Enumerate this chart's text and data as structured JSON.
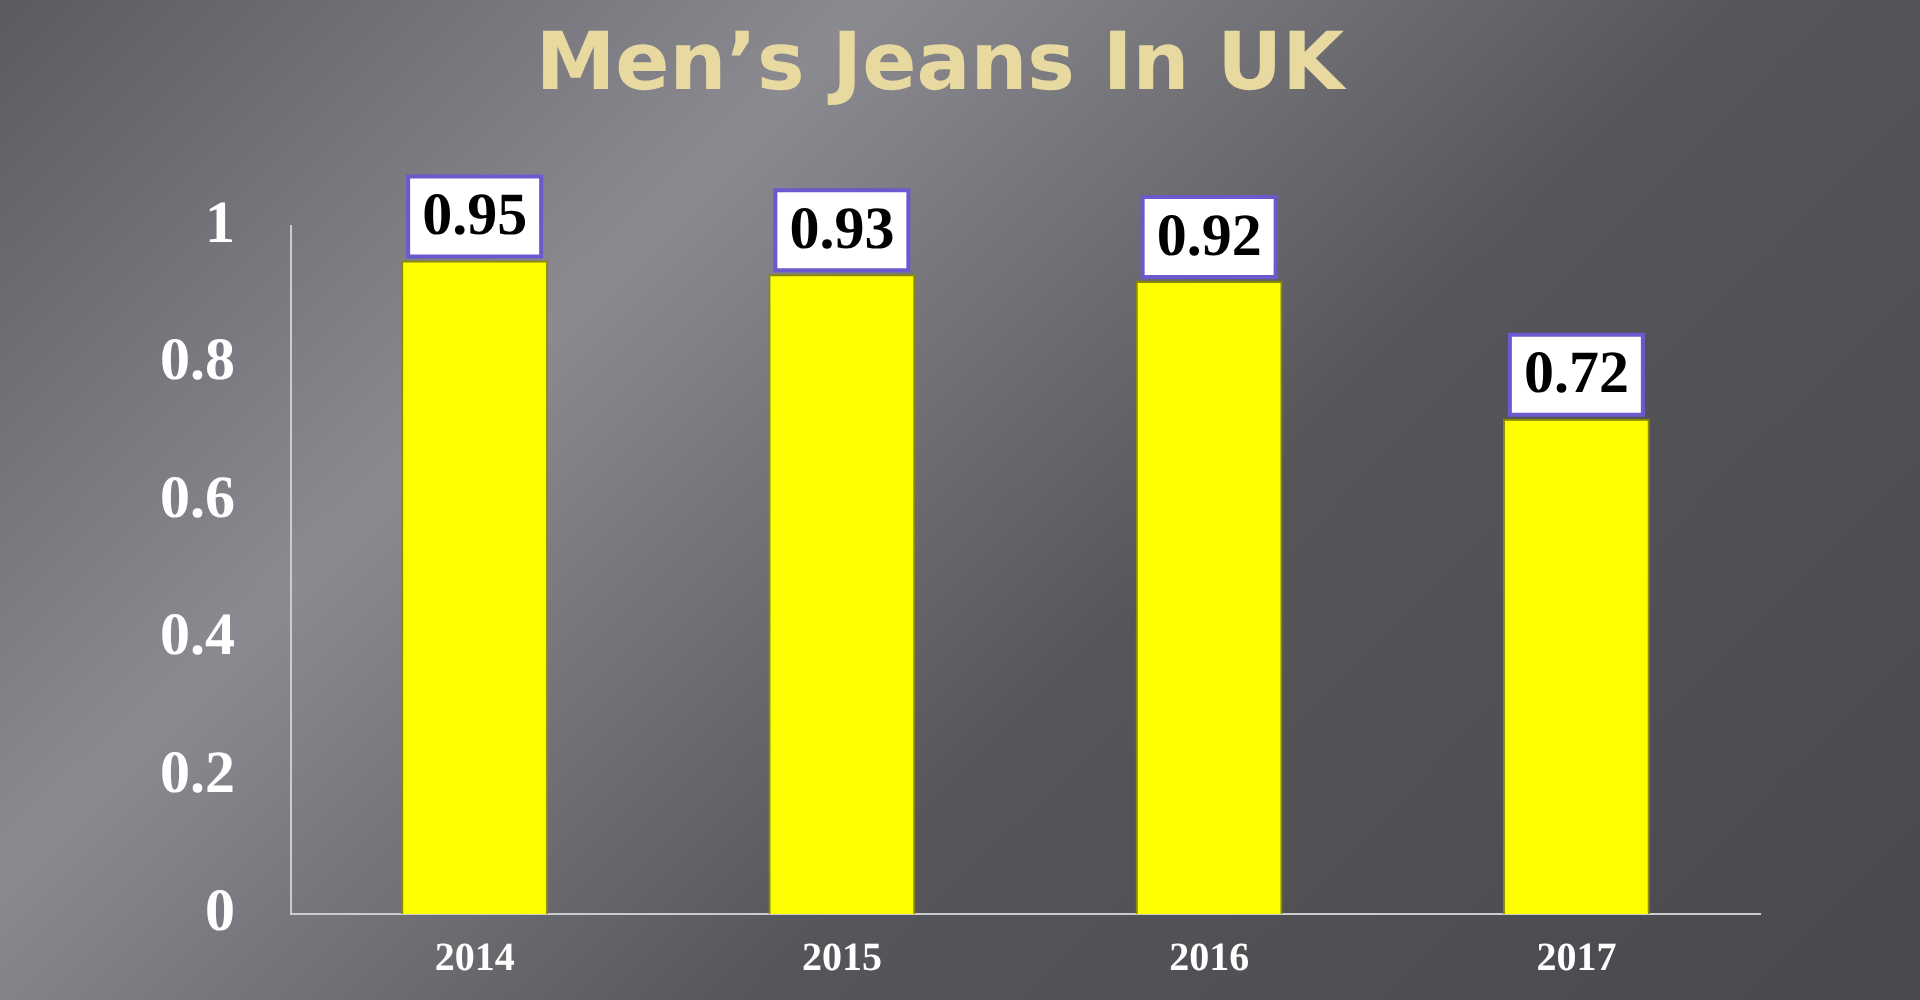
{
  "chart_data": {
    "type": "bar",
    "title": "Men’s Jeans In UK",
    "categories": [
      "2014",
      "2015",
      "2016",
      "2017"
    ],
    "values": [
      0.95,
      0.93,
      0.92,
      0.72
    ],
    "color": "#ffff00",
    "ylim": [
      0,
      1
    ],
    "yticks": [
      0,
      0.2,
      0.4,
      0.6,
      0.8,
      1
    ],
    "grid": false,
    "legend": false,
    "data_labels": true
  }
}
